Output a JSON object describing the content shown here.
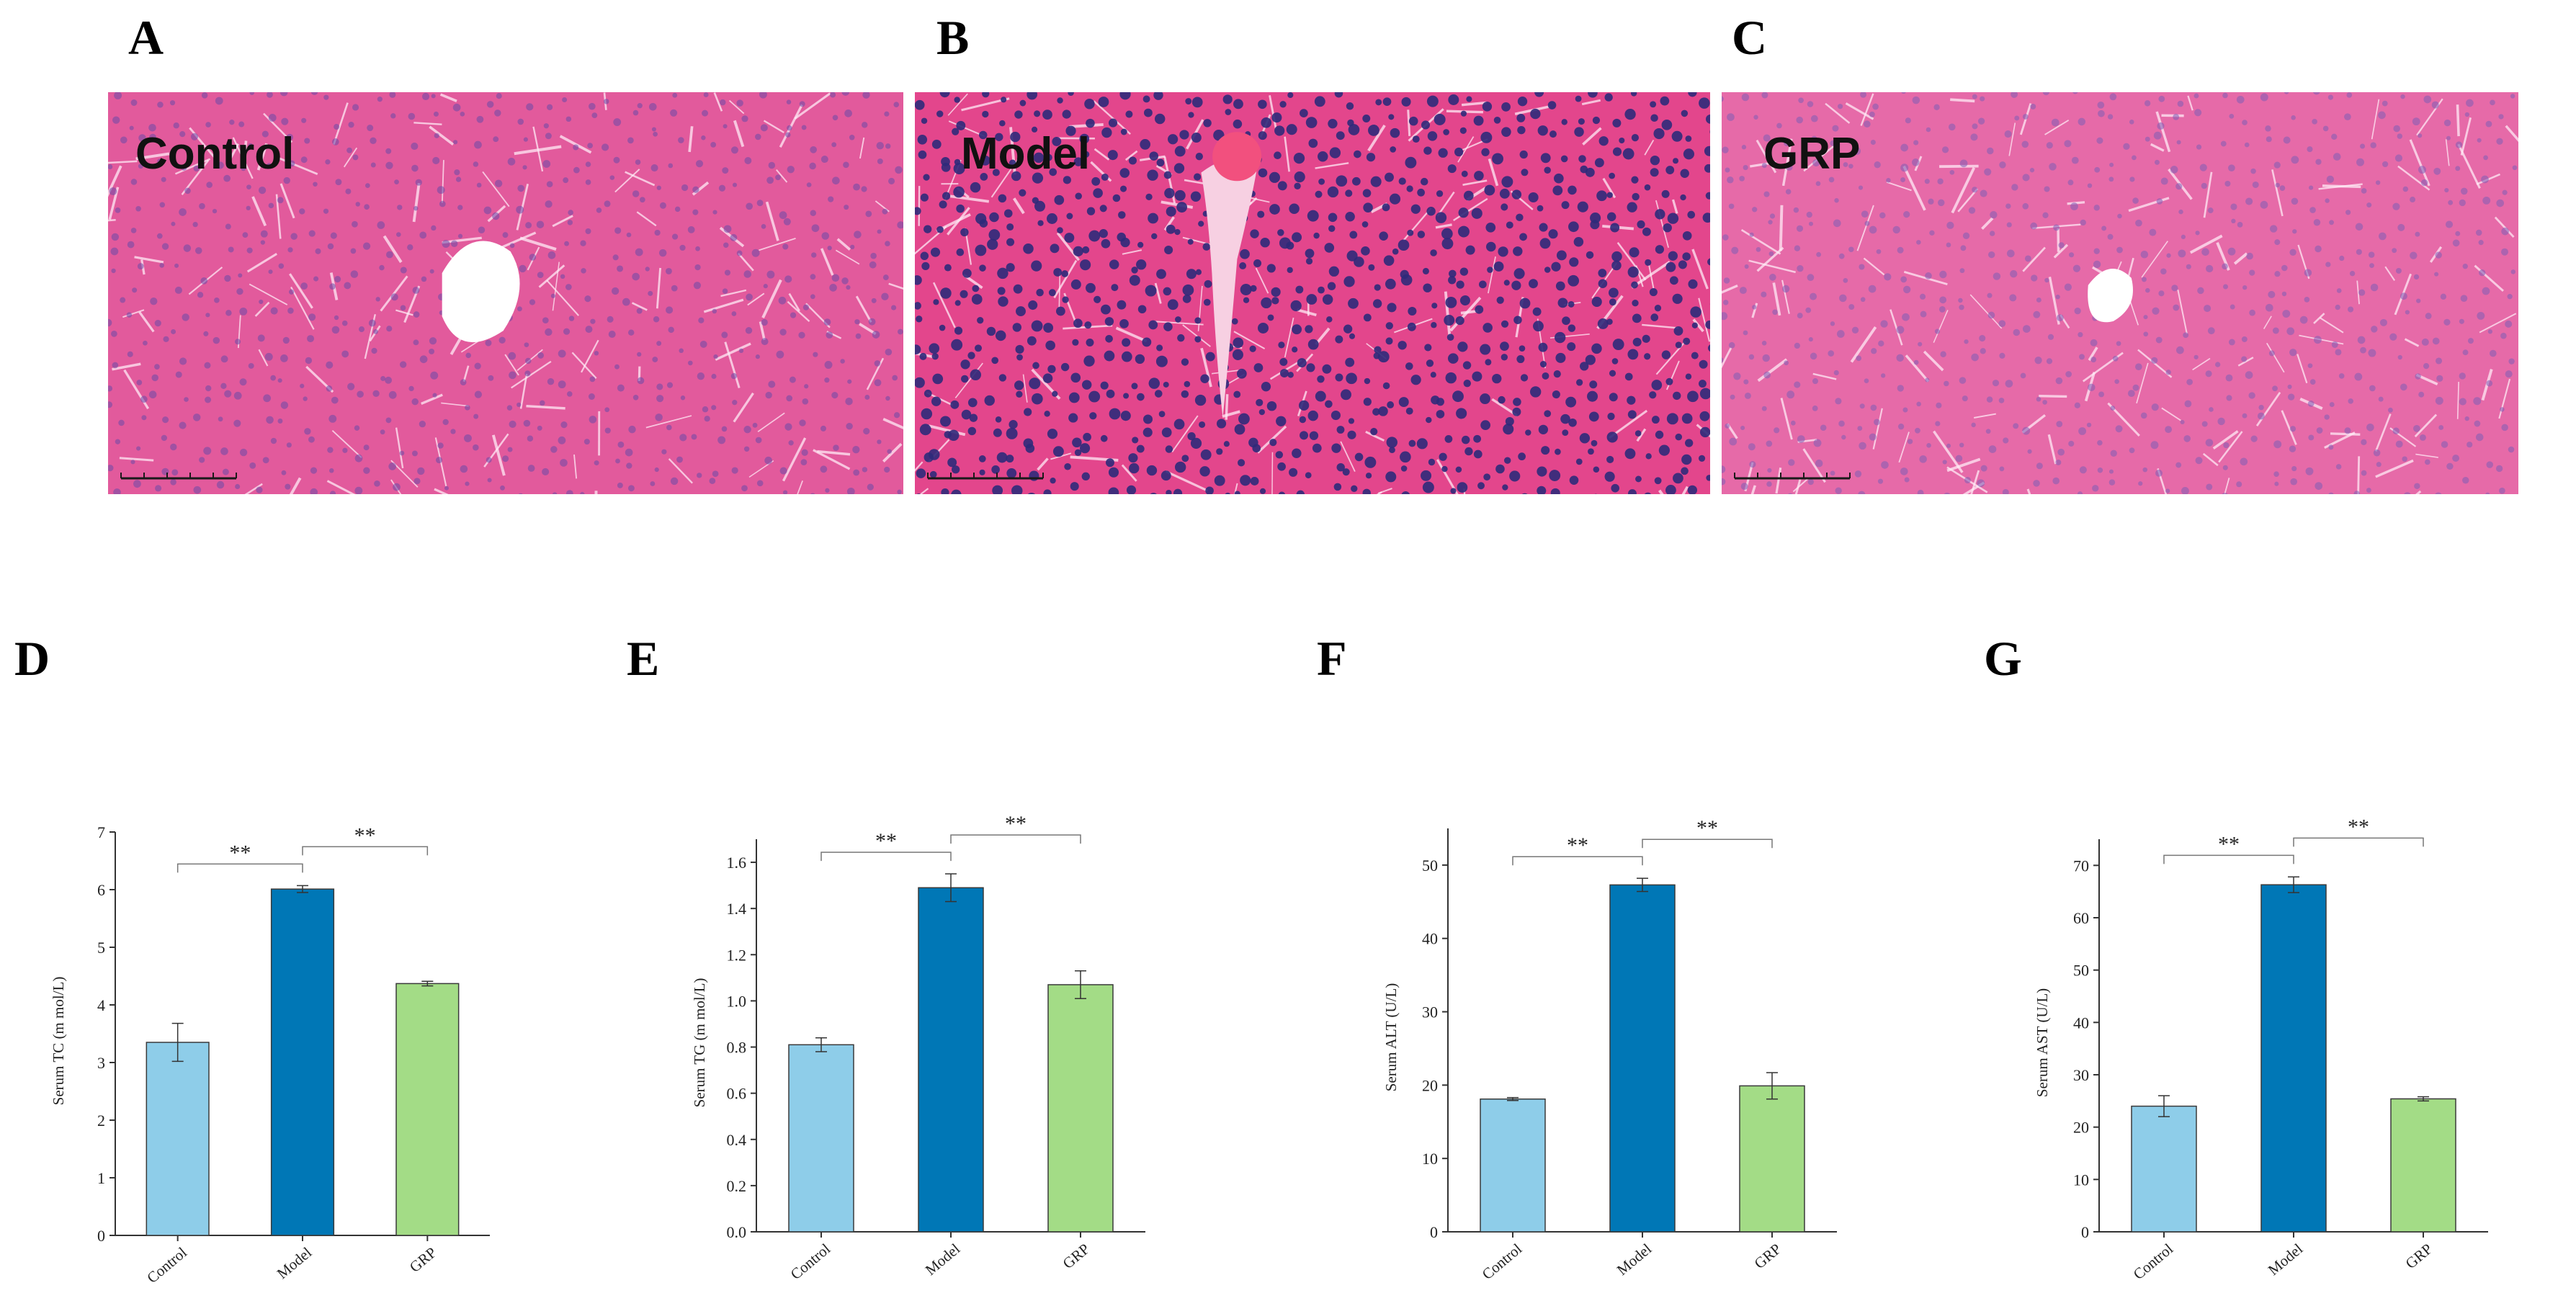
{
  "panels": {
    "A": "A",
    "B": "B",
    "C": "C",
    "D": "D",
    "E": "E",
    "F": "F",
    "G": "G"
  },
  "micrographs": [
    {
      "label": "Control",
      "tissue_color": "#e25a9c",
      "nuclei_color": "#6a4aa8"
    },
    {
      "label": "Model",
      "tissue_color": "#e3468c",
      "nuclei_color": "#2e2a7a"
    },
    {
      "label": "GRP",
      "tissue_color": "#e66aa8",
      "nuclei_color": "#7e5cb4"
    }
  ],
  "colors": {
    "control": "#8ecde9",
    "model": "#0077b6",
    "grp": "#a3dc86"
  },
  "chart_data": [
    {
      "type": "bar",
      "categories": [
        "Control",
        "Model",
        "GRP"
      ],
      "values": [
        3.35,
        6.01,
        4.37
      ],
      "errors": [
        0.33,
        0.06,
        0.04
      ],
      "ylabel": "Serum TC (m mol/L)",
      "ylim": [
        0,
        7
      ],
      "yticks": [
        0,
        1,
        2,
        3,
        4,
        5,
        6,
        7
      ],
      "ytick_labels": [
        "0",
        "1",
        "2",
        "3",
        "4",
        "5",
        "6",
        "7"
      ],
      "significance": [
        {
          "from": 0,
          "to": 1,
          "label": "**"
        },
        {
          "from": 1,
          "to": 2,
          "label": "**"
        }
      ],
      "grid": false
    },
    {
      "type": "bar",
      "categories": [
        "Control",
        "Model",
        "GRP"
      ],
      "values": [
        0.81,
        1.49,
        1.07
      ],
      "errors": [
        0.03,
        0.06,
        0.06
      ],
      "ylabel": "Serum TG (m mol/L)",
      "ylim": [
        0,
        1.7
      ],
      "yticks": [
        0,
        0.2,
        0.4,
        0.6,
        0.8,
        1.0,
        1.2,
        1.4,
        1.6
      ],
      "ytick_labels": [
        "0.0",
        "0.2",
        "0.4",
        "0.6",
        "0.8",
        "1.0",
        "1.2",
        "1.4",
        "1.6"
      ],
      "significance": [
        {
          "from": 0,
          "to": 1,
          "label": "**"
        },
        {
          "from": 1,
          "to": 2,
          "label": "**"
        }
      ],
      "grid": false
    },
    {
      "type": "bar",
      "categories": [
        "Control",
        "Model",
        "GRP"
      ],
      "values": [
        18.1,
        47.3,
        19.9
      ],
      "errors": [
        0.2,
        0.9,
        1.8
      ],
      "ylabel": "Serum ALT (U/L)",
      "ylim": [
        0,
        55
      ],
      "yticks": [
        0,
        10,
        20,
        30,
        40,
        50
      ],
      "ytick_labels": [
        "0",
        "10",
        "20",
        "30",
        "40",
        "50"
      ],
      "significance": [
        {
          "from": 0,
          "to": 1,
          "label": "**"
        },
        {
          "from": 1,
          "to": 2,
          "label": "**"
        }
      ],
      "grid": false
    },
    {
      "type": "bar",
      "categories": [
        "Control",
        "Model",
        "GRP"
      ],
      "values": [
        24.0,
        66.3,
        25.4
      ],
      "errors": [
        2.0,
        1.5,
        0.4
      ],
      "ylabel": "Serum AST (U/L)",
      "ylim": [
        0,
        75
      ],
      "yticks": [
        0,
        10,
        20,
        30,
        40,
        50,
        60,
        70
      ],
      "ytick_labels": [
        "0",
        "10",
        "20",
        "30",
        "40",
        "50",
        "60",
        "70"
      ],
      "significance": [
        {
          "from": 0,
          "to": 1,
          "label": "**"
        },
        {
          "from": 1,
          "to": 2,
          "label": "**"
        }
      ],
      "grid": false
    }
  ]
}
